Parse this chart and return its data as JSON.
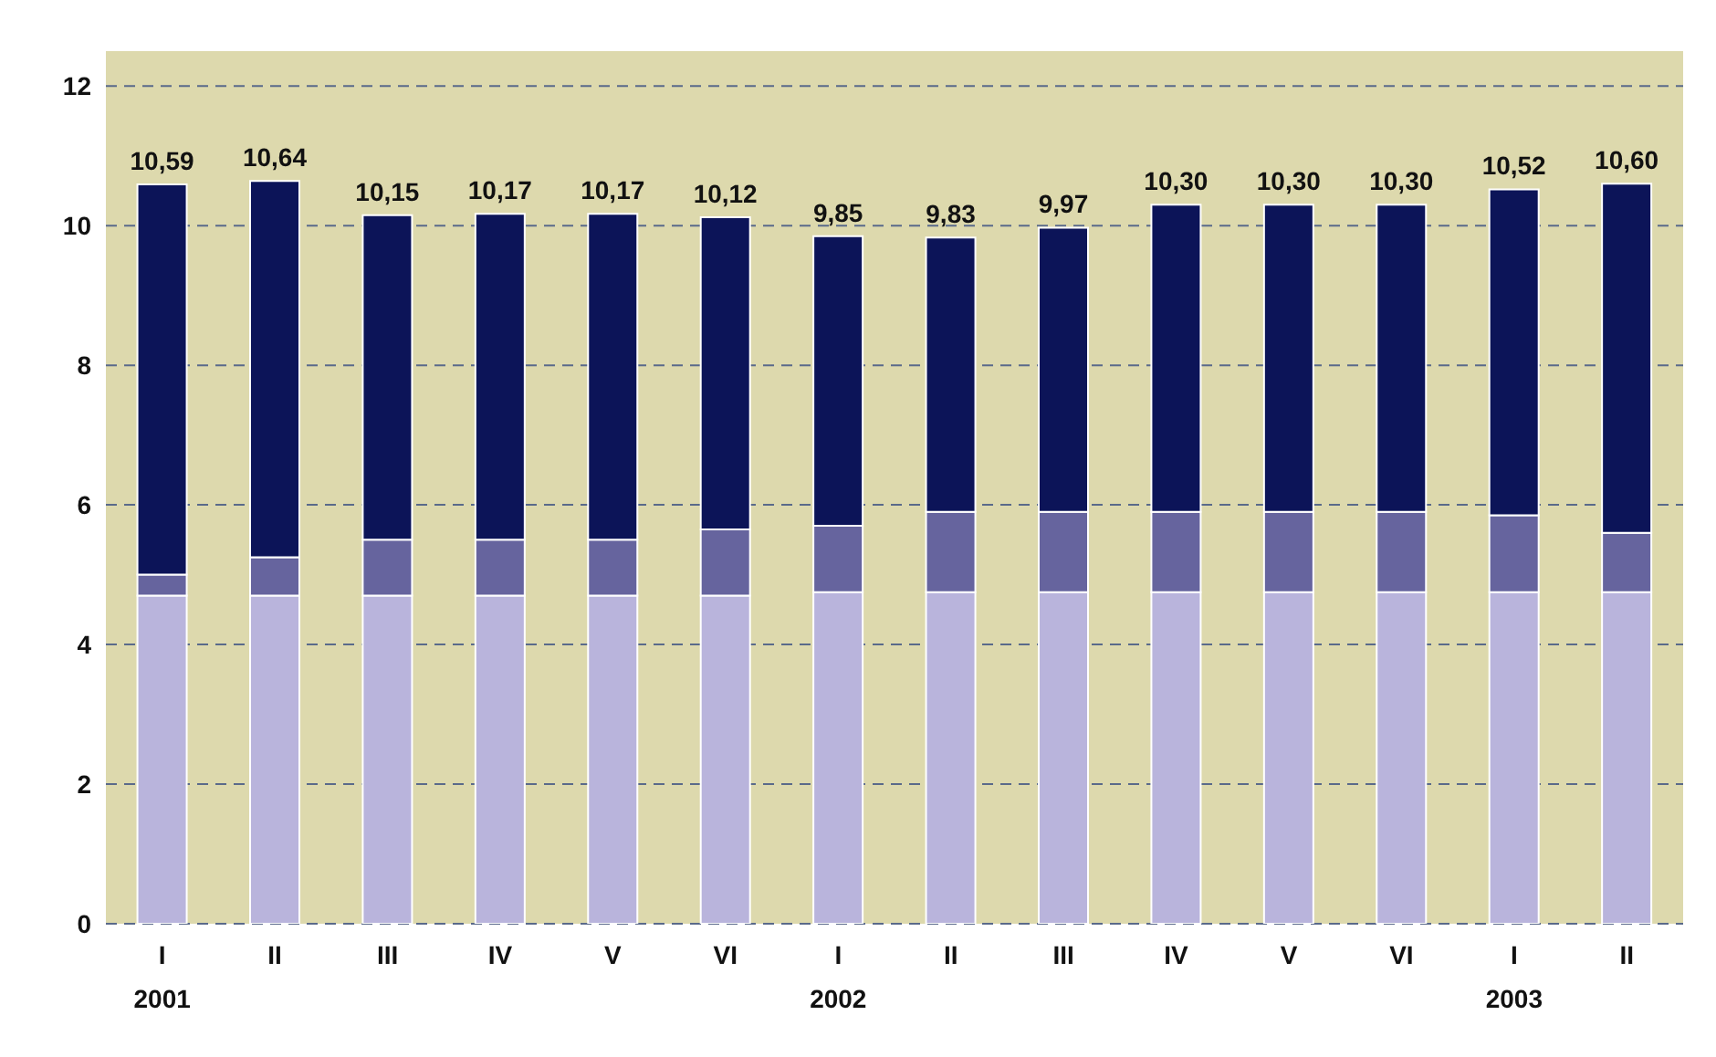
{
  "chart_data": {
    "type": "bar",
    "stacked": true,
    "categories": [
      "I\n2001",
      "II",
      "III",
      "IV",
      "V",
      "VI",
      "I\n2002",
      "II",
      "III",
      "IV",
      "V",
      "VI",
      "I\n2003",
      "II"
    ],
    "series": [
      {
        "color": "#b9b4dc",
        "values": [
          4.7,
          4.7,
          4.7,
          4.7,
          4.7,
          4.7,
          4.75,
          4.75,
          4.75,
          4.75,
          4.75,
          4.75,
          4.75,
          4.75
        ]
      },
      {
        "color": "#66649e",
        "values": [
          0.3,
          0.55,
          0.8,
          0.8,
          0.8,
          0.95,
          0.95,
          1.15,
          1.15,
          1.15,
          1.15,
          1.15,
          1.1,
          0.85
        ]
      },
      {
        "color": "#0c1458",
        "values": [
          5.59,
          5.39,
          4.65,
          4.67,
          4.67,
          4.47,
          4.15,
          3.93,
          4.07,
          4.4,
          4.4,
          4.4,
          4.67,
          5.0
        ]
      }
    ],
    "totals": [
      "10,59",
      "10,64",
      "10,15",
      "10,17",
      "10,17",
      "10,12",
      "9,85",
      "9,83",
      "9,97",
      "10,30",
      "10,30",
      "10,30",
      "10,52",
      "10,60"
    ],
    "ylim": [
      0,
      12.5
    ],
    "yticks": [
      0,
      2,
      4,
      6,
      8,
      10,
      12
    ],
    "grid": "y"
  }
}
